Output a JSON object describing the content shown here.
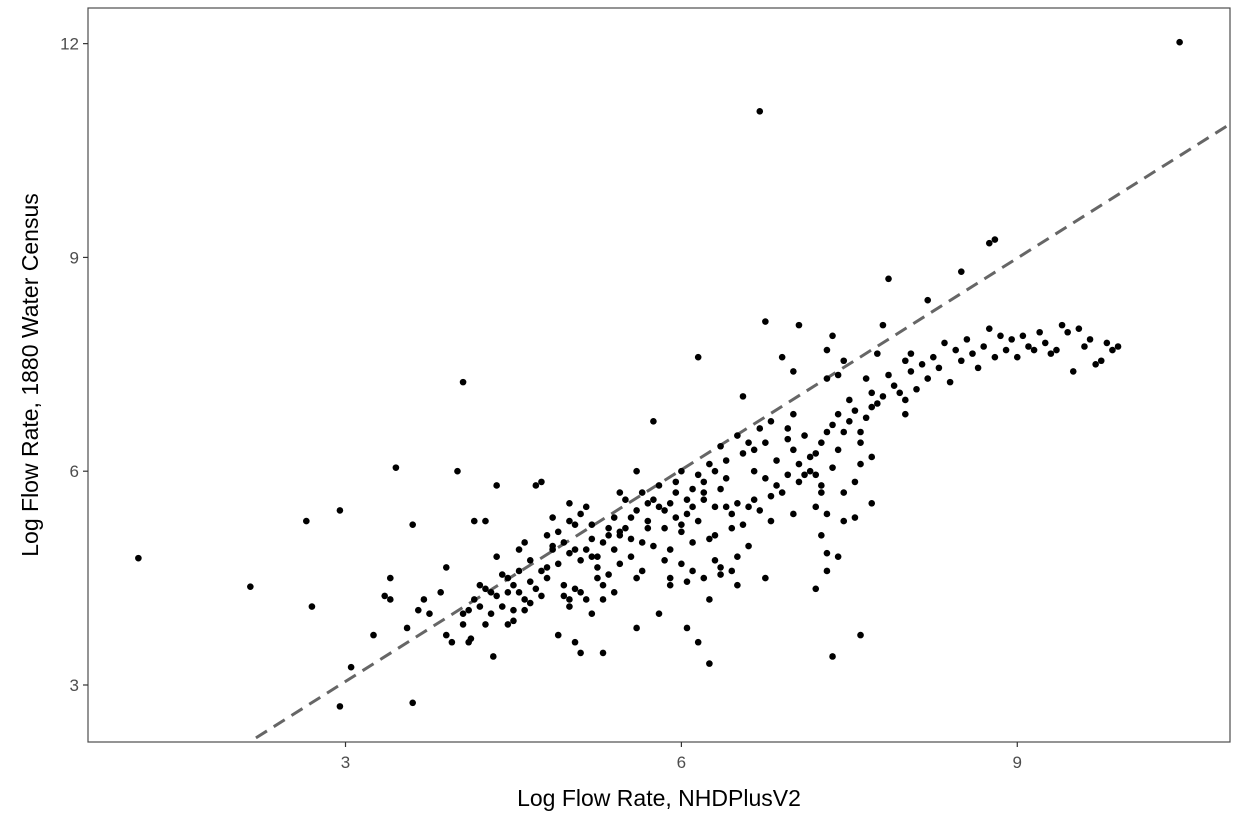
{
  "chart_data": {
    "type": "scatter",
    "title": "",
    "xlabel": "Log Flow Rate, NHDPlusV2",
    "ylabel": "Log Flow Rate, 1880 Water Census",
    "xlim": [
      0.7,
      10.9
    ],
    "ylim": [
      2.2,
      12.5
    ],
    "x_ticks": [
      3,
      6,
      9
    ],
    "x_tick_labels": [
      "3",
      "6",
      "9"
    ],
    "y_ticks": [
      3,
      6,
      9,
      12
    ],
    "y_tick_labels": [
      "3",
      "6",
      "9",
      "12"
    ],
    "grid": false,
    "reference_line": {
      "style": "dashed",
      "color": "#666666",
      "x_range": [
        2.2,
        10.9
      ],
      "intercept": 0.08,
      "slope": 0.99
    },
    "point_color": "#000000",
    "points": [
      [
        1.15,
        4.78
      ],
      [
        2.15,
        4.38
      ],
      [
        2.65,
        5.3
      ],
      [
        2.7,
        4.1
      ],
      [
        2.95,
        5.45
      ],
      [
        2.95,
        2.7
      ],
      [
        3.05,
        3.25
      ],
      [
        3.25,
        3.7
      ],
      [
        3.35,
        4.25
      ],
      [
        3.4,
        4.5
      ],
      [
        3.45,
        6.05
      ],
      [
        3.4,
        4.2
      ],
      [
        3.55,
        3.8
      ],
      [
        3.6,
        5.25
      ],
      [
        3.6,
        2.75
      ],
      [
        3.65,
        4.05
      ],
      [
        3.7,
        4.2
      ],
      [
        3.75,
        4.0
      ],
      [
        3.85,
        4.3
      ],
      [
        3.9,
        3.7
      ],
      [
        3.9,
        4.65
      ],
      [
        3.95,
        3.6
      ],
      [
        4.0,
        6.0
      ],
      [
        4.05,
        7.25
      ],
      [
        4.05,
        4.0
      ],
      [
        4.1,
        3.6
      ],
      [
        4.12,
        3.65
      ],
      [
        4.15,
        5.3
      ],
      [
        4.2,
        4.1
      ],
      [
        4.25,
        3.85
      ],
      [
        4.25,
        5.3
      ],
      [
        4.3,
        4.3
      ],
      [
        4.32,
        3.4
      ],
      [
        4.35,
        5.8
      ],
      [
        4.35,
        4.8
      ],
      [
        4.4,
        4.55
      ],
      [
        4.45,
        4.3
      ],
      [
        4.45,
        3.85
      ],
      [
        4.5,
        4.05
      ],
      [
        4.5,
        3.9
      ],
      [
        4.55,
        4.6
      ],
      [
        4.55,
        4.9
      ],
      [
        4.6,
        4.2
      ],
      [
        4.6,
        5.0
      ],
      [
        4.65,
        4.45
      ],
      [
        4.65,
        4.75
      ],
      [
        4.7,
        5.8
      ],
      [
        4.75,
        5.85
      ],
      [
        4.75,
        4.25
      ],
      [
        4.8,
        4.65
      ],
      [
        4.8,
        5.1
      ],
      [
        4.85,
        5.35
      ],
      [
        4.85,
        4.9
      ],
      [
        4.9,
        4.7
      ],
      [
        4.9,
        3.7
      ],
      [
        4.95,
        4.4
      ],
      [
        4.95,
        4.25
      ],
      [
        5.0,
        5.3
      ],
      [
        5.0,
        4.85
      ],
      [
        5.0,
        4.1
      ],
      [
        5.0,
        4.2
      ],
      [
        5.05,
        4.9
      ],
      [
        5.05,
        4.35
      ],
      [
        5.05,
        3.6
      ],
      [
        5.1,
        3.45
      ],
      [
        5.1,
        4.3
      ],
      [
        5.1,
        5.4
      ],
      [
        5.15,
        5.5
      ],
      [
        5.15,
        4.2
      ],
      [
        5.2,
        4.0
      ],
      [
        5.2,
        4.8
      ],
      [
        5.2,
        5.25
      ],
      [
        5.25,
        4.5
      ],
      [
        5.25,
        4.65
      ],
      [
        5.3,
        4.4
      ],
      [
        5.3,
        4.2
      ],
      [
        5.3,
        3.45
      ],
      [
        5.35,
        5.2
      ],
      [
        5.35,
        4.55
      ],
      [
        5.4,
        4.9
      ],
      [
        5.4,
        4.3
      ],
      [
        5.45,
        5.7
      ],
      [
        5.45,
        4.7
      ],
      [
        5.45,
        5.1
      ],
      [
        5.5,
        5.6
      ],
      [
        5.55,
        4.8
      ],
      [
        5.55,
        5.05
      ],
      [
        5.6,
        3.8
      ],
      [
        5.6,
        4.5
      ],
      [
        5.6,
        6.0
      ],
      [
        5.65,
        5.0
      ],
      [
        5.65,
        4.6
      ],
      [
        5.7,
        5.3
      ],
      [
        5.7,
        5.2
      ],
      [
        5.75,
        6.7
      ],
      [
        5.75,
        4.95
      ],
      [
        5.8,
        4.0
      ],
      [
        5.8,
        5.5
      ],
      [
        5.85,
        5.2
      ],
      [
        5.85,
        4.75
      ],
      [
        5.9,
        4.5
      ],
      [
        5.9,
        4.9
      ],
      [
        5.95,
        5.7
      ],
      [
        5.95,
        5.35
      ],
      [
        6.0,
        5.25
      ],
      [
        6.0,
        4.7
      ],
      [
        6.0,
        5.15
      ],
      [
        6.05,
        5.4
      ],
      [
        6.05,
        3.8
      ],
      [
        6.1,
        5.5
      ],
      [
        6.1,
        4.6
      ],
      [
        6.1,
        5.0
      ],
      [
        6.15,
        5.3
      ],
      [
        6.15,
        3.6
      ],
      [
        6.2,
        5.6
      ],
      [
        6.2,
        5.7
      ],
      [
        6.25,
        4.2
      ],
      [
        6.25,
        3.3
      ],
      [
        6.25,
        5.05
      ],
      [
        6.3,
        5.5
      ],
      [
        6.3,
        5.1
      ],
      [
        6.35,
        5.75
      ],
      [
        6.35,
        4.65
      ],
      [
        6.4,
        5.9
      ],
      [
        6.4,
        5.5
      ],
      [
        6.45,
        5.2
      ],
      [
        6.45,
        5.4
      ],
      [
        6.5,
        4.4
      ],
      [
        6.5,
        5.55
      ],
      [
        6.55,
        7.05
      ],
      [
        6.55,
        5.25
      ],
      [
        6.6,
        5.5
      ],
      [
        6.6,
        4.95
      ],
      [
        6.65,
        5.6
      ],
      [
        6.65,
        6.0
      ],
      [
        6.7,
        5.45
      ],
      [
        6.75,
        5.9
      ],
      [
        6.75,
        6.4
      ],
      [
        6.75,
        4.5
      ],
      [
        6.8,
        5.65
      ],
      [
        6.8,
        5.3
      ],
      [
        6.85,
        6.15
      ],
      [
        6.85,
        5.8
      ],
      [
        6.9,
        5.7
      ],
      [
        6.9,
        7.6
      ],
      [
        6.95,
        5.95
      ],
      [
        6.95,
        6.45
      ],
      [
        7.0,
        6.3
      ],
      [
        7.0,
        5.4
      ],
      [
        7.05,
        6.1
      ],
      [
        7.05,
        5.85
      ],
      [
        7.1,
        6.5
      ],
      [
        7.1,
        5.95
      ],
      [
        7.15,
        6.0
      ],
      [
        7.15,
        6.2
      ],
      [
        7.2,
        6.25
      ],
      [
        7.2,
        4.35
      ],
      [
        7.25,
        6.4
      ],
      [
        7.25,
        5.8
      ],
      [
        7.3,
        4.6
      ],
      [
        7.3,
        6.55
      ],
      [
        7.35,
        6.65
      ],
      [
        7.35,
        3.4
      ],
      [
        7.4,
        6.3
      ],
      [
        7.4,
        6.8
      ],
      [
        7.45,
        5.7
      ],
      [
        7.45,
        6.55
      ],
      [
        7.5,
        6.7
      ],
      [
        7.5,
        7.0
      ],
      [
        7.55,
        5.35
      ],
      [
        7.55,
        6.85
      ],
      [
        7.6,
        6.55
      ],
      [
        7.6,
        3.7
      ],
      [
        7.65,
        6.75
      ],
      [
        7.65,
        7.3
      ],
      [
        7.7,
        6.9
      ],
      [
        7.7,
        7.1
      ],
      [
        7.75,
        6.95
      ],
      [
        7.75,
        7.65
      ],
      [
        7.8,
        7.05
      ],
      [
        7.8,
        8.05
      ],
      [
        7.85,
        7.35
      ],
      [
        7.9,
        7.2
      ],
      [
        7.95,
        7.1
      ],
      [
        8.0,
        7.55
      ],
      [
        8.0,
        6.8
      ],
      [
        8.05,
        7.4
      ],
      [
        8.1,
        7.15
      ],
      [
        8.15,
        7.5
      ],
      [
        8.2,
        7.3
      ],
      [
        8.25,
        7.6
      ],
      [
        8.3,
        7.45
      ],
      [
        8.35,
        7.8
      ],
      [
        8.4,
        7.25
      ],
      [
        8.45,
        7.7
      ],
      [
        8.5,
        7.55
      ],
      [
        8.55,
        7.85
      ],
      [
        8.6,
        7.65
      ],
      [
        8.65,
        7.45
      ],
      [
        8.7,
        7.75
      ],
      [
        8.75,
        8.0
      ],
      [
        8.8,
        7.6
      ],
      [
        8.85,
        7.9
      ],
      [
        8.9,
        7.7
      ],
      [
        8.95,
        7.85
      ],
      [
        9.0,
        7.6
      ],
      [
        9.05,
        7.9
      ],
      [
        9.1,
        7.75
      ],
      [
        9.15,
        7.7
      ],
      [
        9.2,
        7.95
      ],
      [
        9.25,
        7.8
      ],
      [
        9.3,
        7.65
      ],
      [
        9.35,
        7.7
      ],
      [
        9.4,
        8.05
      ],
      [
        9.45,
        7.95
      ],
      [
        9.5,
        7.4
      ],
      [
        9.55,
        8.0
      ],
      [
        9.6,
        7.75
      ],
      [
        9.65,
        7.85
      ],
      [
        9.7,
        7.5
      ],
      [
        9.75,
        7.55
      ],
      [
        9.8,
        7.8
      ],
      [
        9.85,
        7.7
      ],
      [
        9.9,
        7.75
      ],
      [
        6.7,
        11.05
      ],
      [
        10.45,
        12.02
      ],
      [
        8.75,
        9.2
      ],
      [
        8.8,
        9.25
      ],
      [
        8.5,
        8.8
      ],
      [
        8.2,
        8.4
      ],
      [
        7.85,
        8.7
      ],
      [
        8.05,
        7.65
      ],
      [
        8.0,
        7.0
      ],
      [
        7.05,
        8.05
      ],
      [
        6.75,
        8.1
      ],
      [
        6.15,
        7.6
      ],
      [
        7.3,
        7.3
      ],
      [
        7.35,
        7.9
      ],
      [
        7.3,
        7.7
      ],
      [
        7.45,
        7.55
      ],
      [
        7.4,
        7.35
      ],
      [
        7.0,
        7.4
      ],
      [
        7.0,
        6.8
      ],
      [
        6.95,
        6.6
      ],
      [
        6.8,
        6.7
      ],
      [
        6.7,
        6.6
      ],
      [
        6.65,
        6.3
      ],
      [
        6.6,
        6.4
      ],
      [
        6.55,
        6.25
      ],
      [
        6.5,
        6.5
      ],
      [
        6.4,
        6.15
      ],
      [
        6.35,
        6.35
      ],
      [
        6.3,
        6.0
      ],
      [
        6.25,
        6.1
      ],
      [
        6.2,
        5.85
      ],
      [
        6.15,
        5.95
      ],
      [
        6.1,
        5.75
      ],
      [
        6.05,
        5.6
      ],
      [
        6.0,
        6.0
      ],
      [
        5.95,
        5.85
      ],
      [
        5.9,
        5.55
      ],
      [
        5.85,
        5.45
      ],
      [
        5.8,
        5.8
      ],
      [
        5.75,
        5.6
      ],
      [
        5.7,
        5.55
      ],
      [
        5.65,
        5.7
      ],
      [
        5.6,
        5.45
      ],
      [
        5.55,
        5.35
      ],
      [
        5.5,
        5.2
      ],
      [
        5.45,
        5.15
      ],
      [
        5.4,
        5.35
      ],
      [
        5.35,
        5.1
      ],
      [
        5.3,
        5.0
      ],
      [
        5.25,
        4.8
      ],
      [
        5.2,
        5.05
      ],
      [
        5.15,
        4.9
      ],
      [
        5.1,
        4.75
      ],
      [
        5.05,
        5.25
      ],
      [
        5.0,
        5.55
      ],
      [
        4.95,
        5.0
      ],
      [
        4.9,
        5.15
      ],
      [
        4.85,
        4.95
      ],
      [
        4.8,
        4.5
      ],
      [
        4.75,
        4.6
      ],
      [
        4.7,
        4.35
      ],
      [
        4.65,
        4.15
      ],
      [
        4.6,
        4.05
      ],
      [
        4.55,
        4.3
      ],
      [
        4.5,
        4.4
      ],
      [
        4.45,
        4.5
      ],
      [
        4.4,
        4.1
      ],
      [
        4.35,
        4.25
      ],
      [
        4.3,
        4.0
      ],
      [
        4.25,
        4.35
      ],
      [
        4.2,
        4.4
      ],
      [
        4.15,
        4.2
      ],
      [
        4.1,
        4.05
      ],
      [
        4.05,
        3.85
      ],
      [
        7.2,
        5.95
      ],
      [
        7.2,
        5.5
      ],
      [
        7.25,
        5.7
      ],
      [
        7.3,
        5.4
      ],
      [
        7.25,
        5.1
      ],
      [
        7.3,
        4.85
      ],
      [
        7.4,
        4.8
      ],
      [
        7.45,
        5.3
      ],
      [
        7.35,
        6.05
      ],
      [
        7.6,
        6.4
      ],
      [
        7.7,
        5.55
      ],
      [
        7.7,
        6.2
      ],
      [
        7.6,
        6.1
      ],
      [
        7.55,
        5.85
      ],
      [
        6.35,
        4.55
      ],
      [
        6.45,
        4.6
      ],
      [
        6.5,
        4.8
      ],
      [
        6.3,
        4.75
      ],
      [
        6.2,
        4.5
      ],
      [
        6.05,
        4.45
      ],
      [
        5.9,
        4.4
      ]
    ]
  }
}
